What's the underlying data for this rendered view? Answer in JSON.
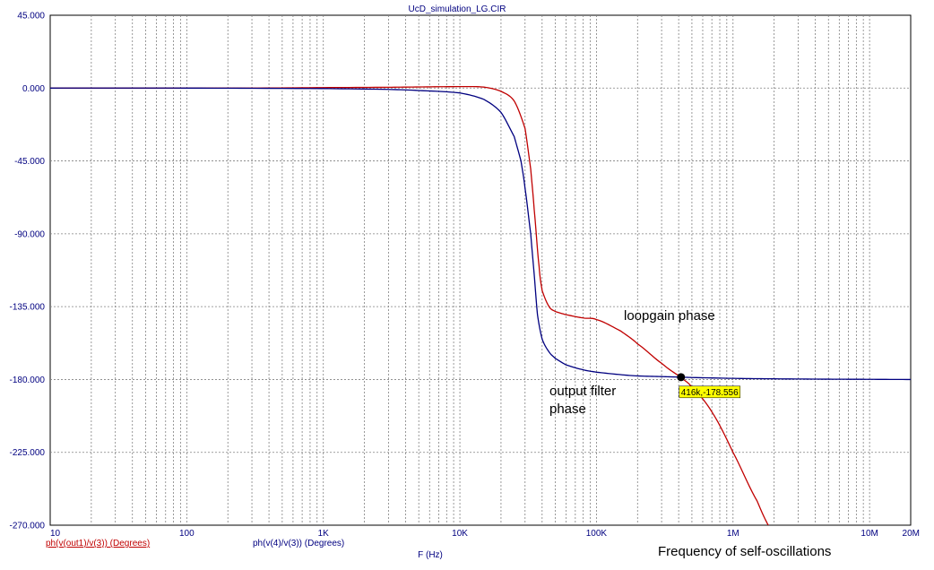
{
  "chart_data": {
    "type": "line",
    "title": "UcD_simulation_LG.CIR",
    "xlabel": "F (Hz)",
    "ylabel": "",
    "x_scale": "log",
    "xlim": [
      10,
      20000000
    ],
    "ylim": [
      -270,
      45
    ],
    "grid": true,
    "y_ticks": [
      45,
      0,
      -45,
      -90,
      -135,
      -180,
      -225,
      -270
    ],
    "y_tick_labels": [
      "45.000",
      "0.000",
      "-45.000",
      "-90.000",
      "-135.000",
      "-180.000",
      "-225.000",
      "-270.000"
    ],
    "x_ticks": [
      10,
      100,
      1000,
      10000,
      100000,
      1000000,
      10000000,
      20000000
    ],
    "x_tick_labels": [
      "10",
      "100",
      "1K",
      "10K",
      "100K",
      "1M",
      "10M",
      "20M"
    ],
    "series": [
      {
        "name": "ph(v(out1)/v(3)) (Degrees)",
        "color": "#c00000",
        "x": [
          10,
          100,
          300,
          1000,
          3000,
          5000,
          10000,
          15000,
          20000,
          25000,
          30000,
          33000,
          35000,
          38000,
          40000,
          45000,
          50000,
          60000,
          80000,
          100000,
          150000,
          200000,
          300000,
          416000,
          500000,
          700000,
          1000000,
          1500000,
          2000000
        ],
        "y": [
          0,
          0,
          0,
          0.3,
          0.5,
          0.7,
          0.9,
          0.6,
          -2,
          -8,
          -25,
          -50,
          -75,
          -110,
          -125,
          -135,
          -138,
          -140,
          -142,
          -143,
          -150,
          -158,
          -170,
          -178.556,
          -185,
          -200,
          -225,
          -255,
          -275
        ]
      },
      {
        "name": "ph(v(4)/v(3)) (Degrees)",
        "color": "#000080",
        "x": [
          10,
          100,
          1000,
          3000,
          5000,
          10000,
          15000,
          20000,
          25000,
          28000,
          30000,
          33000,
          35000,
          37000,
          40000,
          45000,
          50000,
          60000,
          80000,
          100000,
          150000,
          200000,
          300000,
          416000,
          500000,
          1000000,
          2000000,
          5000000,
          10000000,
          20000000
        ],
        "y": [
          0,
          0,
          -0.3,
          -0.8,
          -1.5,
          -3,
          -7,
          -15,
          -30,
          -45,
          -62,
          -90,
          -115,
          -140,
          -155,
          -163,
          -167,
          -171,
          -174,
          -175.5,
          -177,
          -177.8,
          -178.2,
          -178.556,
          -178.8,
          -179.3,
          -179.6,
          -179.8,
          -179.9,
          -180
        ]
      }
    ],
    "cursor": {
      "x": 416000,
      "y": -178.556,
      "label": "416k,-178.556"
    },
    "annotations": [
      "loopgain phase",
      "output filter",
      "phase",
      "Frequency of self-oscillations"
    ]
  }
}
